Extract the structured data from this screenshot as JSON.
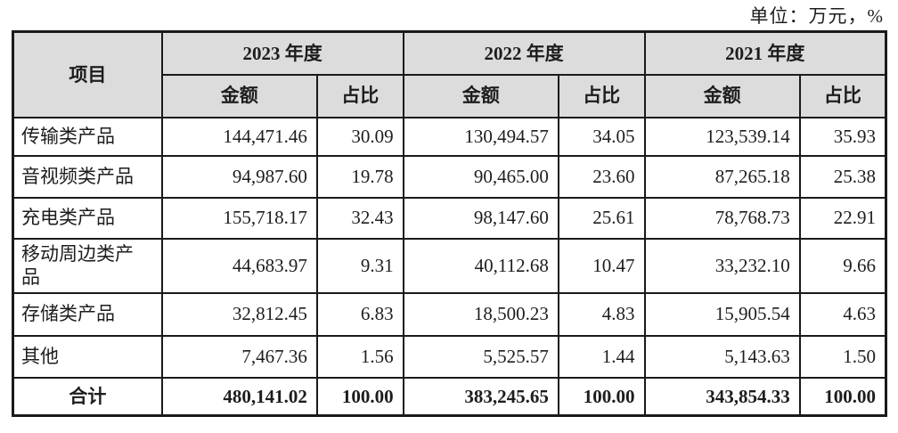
{
  "page": {
    "unit_label": "单位：万元，%"
  },
  "colors": {
    "header_bg": "#dcdcdc",
    "border": "#1a1a1a",
    "text": "#1d1d1d",
    "page_bg": "#ffffff"
  },
  "table": {
    "item_header": "项目",
    "amount_header": "金额",
    "ratio_header": "占比",
    "year_groups": [
      {
        "label": "2023 年度"
      },
      {
        "label": "2022 年度"
      },
      {
        "label": "2021 年度"
      }
    ],
    "rows": [
      {
        "item": "传输类产品",
        "a2023": "144,471.46",
        "r2023": "30.09",
        "a2022": "130,494.57",
        "r2022": "34.05",
        "a2021": "123,539.14",
        "r2021": "35.93"
      },
      {
        "item": "音视频类产品",
        "a2023": "94,987.60",
        "r2023": "19.78",
        "a2022": "90,465.00",
        "r2022": "23.60",
        "a2021": "87,265.18",
        "r2021": "25.38"
      },
      {
        "item": "充电类产品",
        "a2023": "155,718.17",
        "r2023": "32.43",
        "a2022": "98,147.60",
        "r2022": "25.61",
        "a2021": "78,768.73",
        "r2021": "22.91"
      },
      {
        "item": "移动周边类产品",
        "a2023": "44,683.97",
        "r2023": "9.31",
        "a2022": "40,112.68",
        "r2022": "10.47",
        "a2021": "33,232.10",
        "r2021": "9.66"
      },
      {
        "item": "存储类产品",
        "a2023": "32,812.45",
        "r2023": "6.83",
        "a2022": "18,500.23",
        "r2022": "4.83",
        "a2021": "15,905.54",
        "r2021": "4.63"
      },
      {
        "item": "其他",
        "a2023": "7,467.36",
        "r2023": "1.56",
        "a2022": "5,525.57",
        "r2022": "1.44",
        "a2021": "5,143.63",
        "r2021": "1.50"
      }
    ],
    "total_row": {
      "item": "合计",
      "a2023": "480,141.02",
      "r2023": "100.00",
      "a2022": "383,245.65",
      "r2022": "100.00",
      "a2021": "343,854.33",
      "r2021": "100.00"
    }
  }
}
